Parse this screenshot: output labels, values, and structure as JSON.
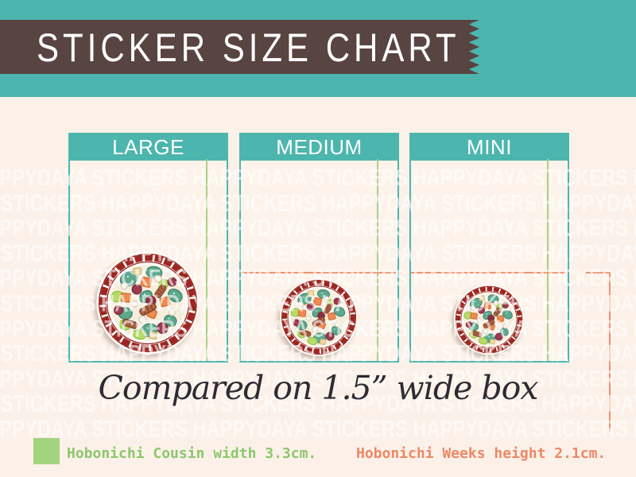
{
  "header": {
    "title": "STICKER SIZE CHART"
  },
  "boxes": [
    {
      "label": "LARGE"
    },
    {
      "label": "MEDIUM"
    },
    {
      "label": "MINI"
    }
  ],
  "caption": "Compared on 1.5” wide box",
  "legend": {
    "cousin_label": "Hobonichi Cousin width 3.3cm.",
    "weeks_label": "Hobonichi Weeks height 2.1cm."
  },
  "watermark": {
    "text": "HAPPYDAYA STICKERS"
  },
  "colors": {
    "teal": "#4cb6ae",
    "brown": "#584440",
    "cream": "#fcf1e8",
    "boxbg": "#fdf3ea",
    "green_line": "#a8d187",
    "green_swatch": "#a2d37e",
    "green_text": "#8cc66d",
    "orange_line": "#ef9270",
    "orange_text": "#ee8765",
    "ink": "#2d2b33",
    "sticker_red": "#9c2621"
  }
}
